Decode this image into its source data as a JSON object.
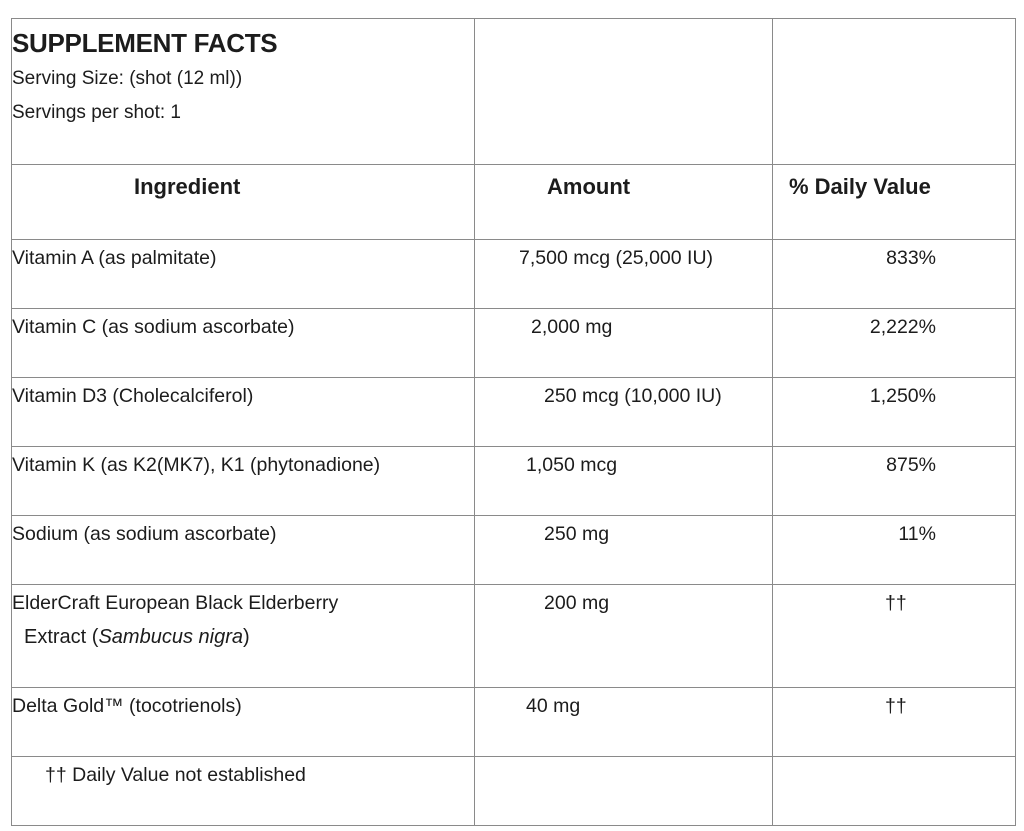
{
  "header": {
    "title": "SUPPLEMENT FACTS",
    "serving_size": "Serving Size: (shot (12 ml))",
    "servings_per": "Servings per shot: 1"
  },
  "columns": {
    "ingredient": "Ingredient",
    "amount": "Amount",
    "daily_value": "% Daily Value"
  },
  "rows": [
    {
      "ingredient": "Vitamin A (as palmitate)",
      "amount": "7,500 mcg (25,000 IU)",
      "daily_value": "833%"
    },
    {
      "ingredient": "Vitamin C (as sodium ascorbate)",
      "amount": "2,000 mg",
      "daily_value": "2,222%"
    },
    {
      "ingredient": "Vitamin D3 (Cholecalciferol)",
      "amount": "250 mcg (10,000 IU)",
      "daily_value": "1,250%"
    },
    {
      "ingredient": "Vitamin K (as K2(MK7), K1 (phytonadione)",
      "amount": "1,050 mcg",
      "daily_value": "875%"
    },
    {
      "ingredient": "Sodium (as sodium ascorbate)",
      "amount": "250 mg",
      "daily_value": "11%"
    },
    {
      "ingredient": "ElderCraft European Black Elderberry",
      "ingredient_line2_prefix": "Extract (",
      "ingredient_line2_italic": "Sambucus nigra",
      "ingredient_line2_suffix": ")",
      "amount": "200 mg",
      "daily_value": "††"
    },
    {
      "ingredient": "Delta Gold™ (tocotrienols)",
      "amount": "40 mg",
      "daily_value": "††"
    }
  ],
  "footnote": "†† Daily Value not established"
}
